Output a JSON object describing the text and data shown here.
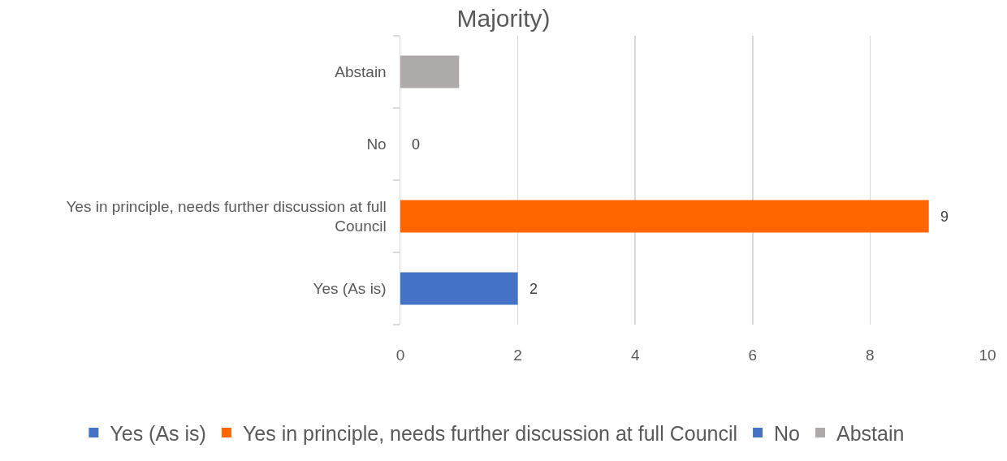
{
  "chart_data": {
    "type": "bar",
    "orientation": "horizontal",
    "title": "Majority)",
    "categories": [
      "Abstain",
      "No",
      "Yes in principle, needs further discussion at full Council",
      "Yes (As is)"
    ],
    "series": [
      {
        "name": "Yes (As is)",
        "color": "#4472c4",
        "values": [
          null,
          null,
          null,
          2
        ],
        "value_labels": [
          null,
          null,
          null,
          "2"
        ]
      },
      {
        "name": "Yes in principle, needs further discussion at full Council",
        "color": "#ff6600",
        "values": [
          null,
          null,
          9,
          null
        ],
        "value_labels": [
          null,
          null,
          "9",
          null
        ]
      },
      {
        "name": "No",
        "color": "#4472c4",
        "values": [
          null,
          0,
          null,
          null
        ],
        "value_labels": [
          null,
          "0",
          null,
          null
        ]
      },
      {
        "name": "Abstain",
        "color": "#aeaaaa",
        "values": [
          1,
          null,
          null,
          null
        ]
      }
    ],
    "xlim": [
      0,
      10
    ],
    "xticks": [
      0,
      2,
      4,
      6,
      8,
      10
    ],
    "grid": "x",
    "legend": "bottom"
  }
}
